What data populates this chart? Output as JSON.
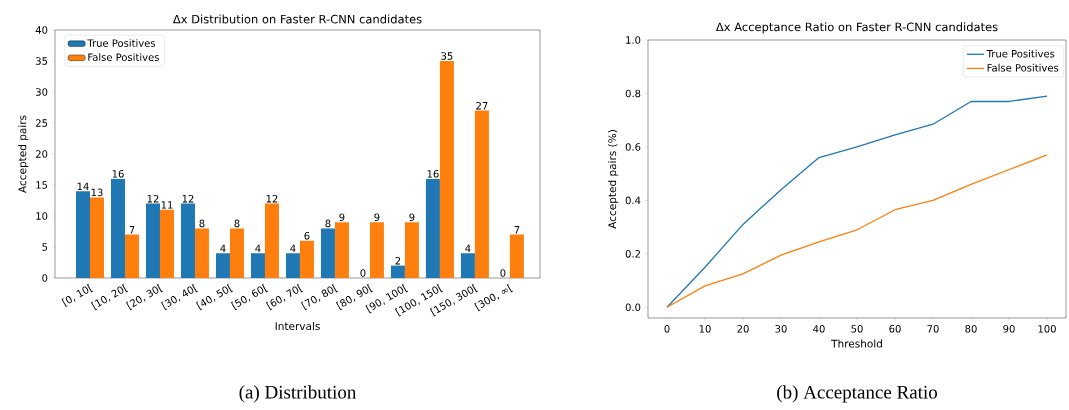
{
  "chart_data": [
    {
      "type": "bar",
      "title": "Δx Distribution on Faster R-CNN candidates",
      "xlabel": "Intervals",
      "ylabel": "Accepted pairs",
      "categories": [
        "[0, 10[",
        "[10, 20[",
        "[20, 30[",
        "[30, 40[",
        "[40, 50[",
        "[50, 60[",
        "[60, 70[",
        "[70, 80[",
        "[80, 90[",
        "[90, 100[",
        "[100, 150[",
        "[150, 300[",
        "[300, ∞["
      ],
      "series": [
        {
          "name": "True Positives",
          "color": "#1f77b4",
          "values": [
            14,
            16,
            12,
            12,
            4,
            4,
            4,
            8,
            0,
            2,
            16,
            4,
            0
          ]
        },
        {
          "name": "False Positives",
          "color": "#ff7f0e",
          "values": [
            13,
            7,
            11,
            8,
            8,
            12,
            6,
            9,
            9,
            9,
            35,
            27,
            7
          ]
        }
      ],
      "ylim": [
        0,
        40
      ],
      "yticks": [
        0,
        5,
        10,
        15,
        20,
        25,
        30,
        35,
        40
      ],
      "data_labels": true,
      "legend": "top left",
      "grid": false,
      "annotations": [
        "(a) Distribution"
      ]
    },
    {
      "type": "line",
      "title": "Δx Acceptance Ratio on Faster R-CNN candidates",
      "xlabel": "Threshold",
      "ylabel": "Accepted pairs (%)",
      "x": [
        0,
        10,
        20,
        30,
        40,
        50,
        60,
        70,
        80,
        90,
        100
      ],
      "series": [
        {
          "name": "True Positives",
          "color": "#1f77b4",
          "values": [
            0,
            0.15,
            0.31,
            0.44,
            0.56,
            0.6,
            0.645,
            0.685,
            0.77,
            0.77,
            0.79
          ]
        },
        {
          "name": "False Positives",
          "color": "#ff7f0e",
          "values": [
            0,
            0.08,
            0.125,
            0.195,
            0.245,
            0.29,
            0.365,
            0.4,
            0.46,
            0.515,
            0.57
          ]
        }
      ],
      "xlim": [
        -5,
        105
      ],
      "xticks": [
        0,
        10,
        20,
        30,
        40,
        50,
        60,
        70,
        80,
        90,
        100
      ],
      "ylim": [
        -0.04,
        1.0
      ],
      "yticks": [
        {
          "value": 0,
          "label": "0.0"
        },
        0.2,
        0.4,
        0.6,
        0.8,
        {
          "value": 1.0,
          "label": "1.0"
        }
      ],
      "legend": "top right",
      "grid": false,
      "marker": "none",
      "line_style": "solid",
      "annotations": [
        "(b) Acceptance Ratio"
      ]
    }
  ]
}
